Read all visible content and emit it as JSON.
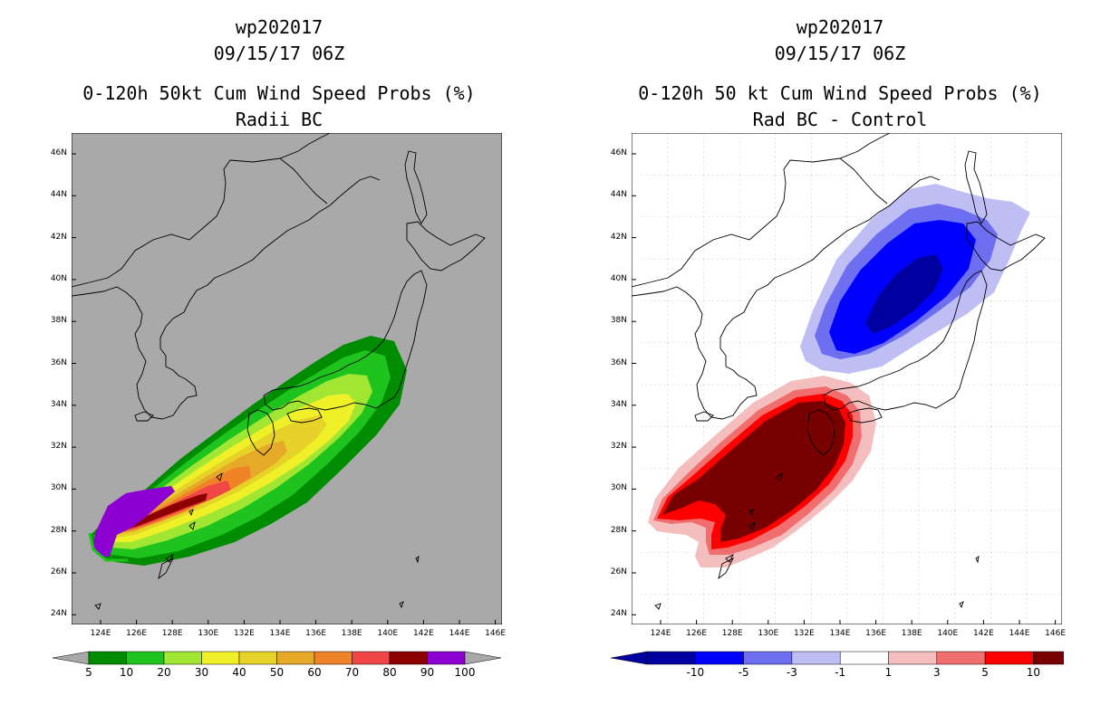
{
  "left": {
    "title1": "wp202017",
    "title2": "09/15/17 06Z",
    "title3": "0-120h 50kt Cum Wind Speed Probs (%)",
    "title4": "Radii BC",
    "colorbar_colors": [
      "#008c00",
      "#1ec31e",
      "#a0e632",
      "#f0f028",
      "#e6d228",
      "#e6aa28",
      "#f08228",
      "#f04646",
      "#8c0000",
      "#8c00d2"
    ],
    "colorbar_labels": [
      "5",
      "10",
      "20",
      "30",
      "40",
      "50",
      "60",
      "70",
      "80",
      "90",
      "100"
    ]
  },
  "right": {
    "title1": "wp202017",
    "title2": "09/15/17 06Z",
    "title3": "0-120h 50 kt Cum Wind Speed Probs (%)",
    "title4": "Rad BC - Control",
    "colorbar_colors": [
      "#0000a0",
      "#0000ff",
      "#6e6ef0",
      "#bebef5",
      "#ffffff",
      "#f5bebe",
      "#f06e6e",
      "#ff0000",
      "#780000"
    ],
    "colorbar_labels": [
      "-10",
      "-5",
      "-3",
      "-1",
      "1",
      "3",
      "5",
      "10"
    ]
  },
  "axes": {
    "lat_labels": [
      "46N",
      "44N",
      "42N",
      "40N",
      "38N",
      "36N",
      "34N",
      "32N",
      "30N",
      "28N",
      "26N",
      "24N"
    ],
    "lon_labels": [
      "124E",
      "126E",
      "128E",
      "130E",
      "132E",
      "134E",
      "136E",
      "138E",
      "140E",
      "142E",
      "144E",
      "146E"
    ]
  }
}
